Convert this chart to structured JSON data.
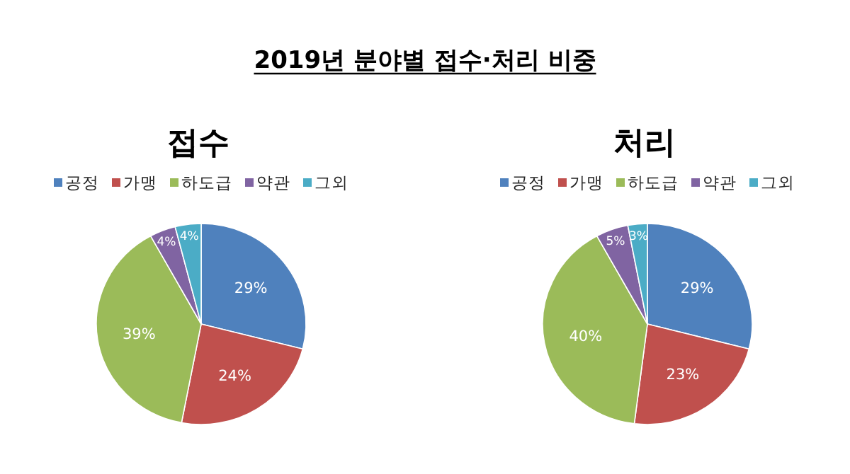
{
  "chart_data": [
    {
      "type": "pie",
      "title": "2019년 분야별 접수·처리 비중",
      "subtitle": "접수",
      "categories": [
        "공정",
        "가맹",
        "하도급",
        "약관",
        "그외"
      ],
      "values": [
        29,
        24,
        39,
        4,
        4
      ],
      "value_labels": [
        "29%",
        "24%",
        "39%",
        "4%",
        "4%"
      ],
      "colors": [
        "#4f81bd",
        "#c0504d",
        "#9bbb59",
        "#8064a2",
        "#4bacc6"
      ],
      "legend": "top"
    },
    {
      "type": "pie",
      "title": "처리",
      "categories": [
        "공정",
        "가맹",
        "하도급",
        "약관",
        "그외"
      ],
      "values": [
        29,
        23,
        40,
        5,
        3
      ],
      "value_labels": [
        "29%",
        "23%",
        "40%",
        "5%",
        "3%"
      ],
      "colors": [
        "#4f81bd",
        "#c0504d",
        "#9bbb59",
        "#8064a2",
        "#4bacc6"
      ],
      "legend": "top"
    }
  ]
}
